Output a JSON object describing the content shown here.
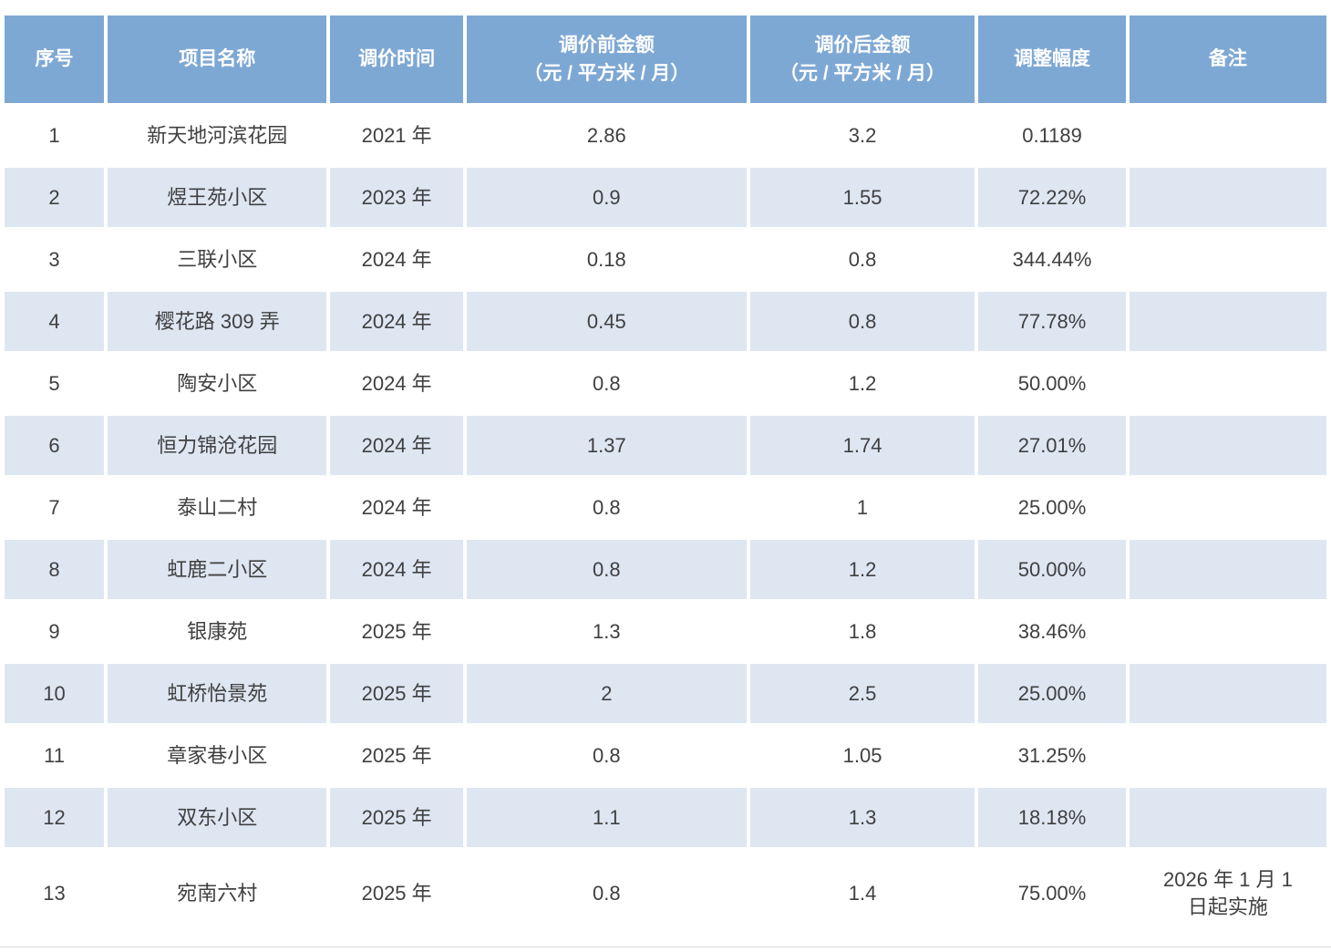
{
  "colors": {
    "header_bg": "#7EA8D4",
    "stripe_bg": "#DEE6F2",
    "header_text": "#FFFFFF",
    "body_text": "#404040",
    "bottom_rule": "#D9D9D9"
  },
  "headers": [
    "序号",
    "项目名称",
    "调价时间",
    "调价前金额\n（元 / 平方米 / 月）",
    "调价后金额\n（元 / 平方米 / 月）",
    "调整幅度",
    "备注"
  ],
  "rows": [
    {
      "no": "1",
      "name": "新天地河滨花园",
      "time": "2021 年",
      "before": "2.86",
      "after": "3.2",
      "rate": "0.1189",
      "remark": ""
    },
    {
      "no": "2",
      "name": "煜王苑小区",
      "time": "2023 年",
      "before": "0.9",
      "after": "1.55",
      "rate": "72.22%",
      "remark": ""
    },
    {
      "no": "3",
      "name": "三联小区",
      "time": "2024 年",
      "before": "0.18",
      "after": "0.8",
      "rate": "344.44%",
      "remark": ""
    },
    {
      "no": "4",
      "name": "樱花路 309 弄",
      "time": "2024 年",
      "before": "0.45",
      "after": "0.8",
      "rate": "77.78%",
      "remark": ""
    },
    {
      "no": "5",
      "name": "陶安小区",
      "time": "2024 年",
      "before": "0.8",
      "after": "1.2",
      "rate": "50.00%",
      "remark": ""
    },
    {
      "no": "6",
      "name": "恒力锦沧花园",
      "time": "2024 年",
      "before": "1.37",
      "after": "1.74",
      "rate": "27.01%",
      "remark": ""
    },
    {
      "no": "7",
      "name": "泰山二村",
      "time": "2024 年",
      "before": "0.8",
      "after": "1",
      "rate": "25.00%",
      "remark": ""
    },
    {
      "no": "8",
      "name": "虹鹿二小区",
      "time": "2024 年",
      "before": "0.8",
      "after": "1.2",
      "rate": "50.00%",
      "remark": ""
    },
    {
      "no": "9",
      "name": "银康苑",
      "time": "2025 年",
      "before": "1.3",
      "after": "1.8",
      "rate": "38.46%",
      "remark": ""
    },
    {
      "no": "10",
      "name": "虹桥怡景苑",
      "time": "2025 年",
      "before": "2",
      "after": "2.5",
      "rate": "25.00%",
      "remark": ""
    },
    {
      "no": "11",
      "name": "章家巷小区",
      "time": "2025 年",
      "before": "0.8",
      "after": "1.05",
      "rate": "31.25%",
      "remark": ""
    },
    {
      "no": "12",
      "name": "双东小区",
      "time": "2025 年",
      "before": "1.1",
      "after": "1.3",
      "rate": "18.18%",
      "remark": ""
    },
    {
      "no": "13",
      "name": "宛南六村",
      "time": "2025 年",
      "before": "0.8",
      "after": "1.4",
      "rate": "75.00%",
      "remark": "2026 年 1 月 1\n日起实施"
    }
  ]
}
